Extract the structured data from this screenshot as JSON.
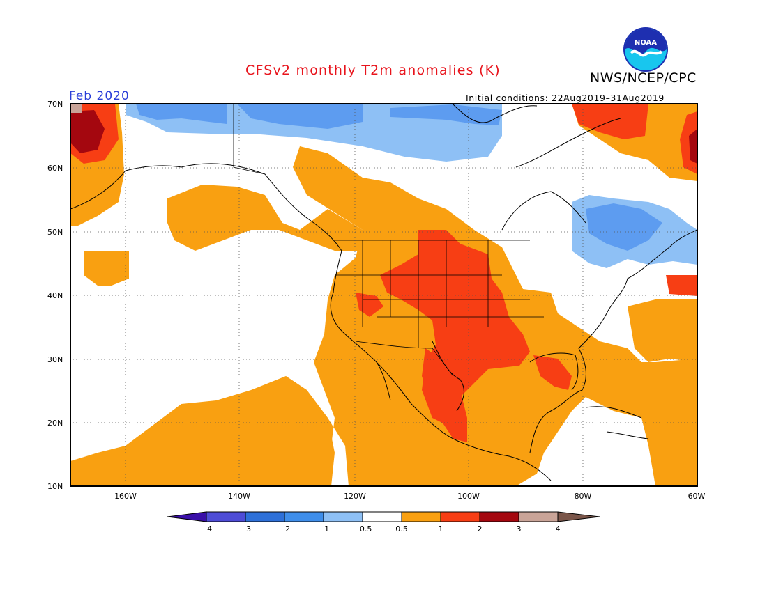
{
  "title": "CFSv2 monthly T2m anomalies (K)",
  "agency": "NWS/NCEP/CPC",
  "logo_text": "NOAA",
  "valid_month": "Feb 2020",
  "initial_conditions": "Initial conditions: 22Aug2019–31Aug2019",
  "colors": {
    "title": "#e8141c",
    "month": "#2a3ed8",
    "neg4": "#3a0fa8",
    "neg3": "#4e4cd6",
    "neg2": "#2e70d8",
    "neg1": "#5d9cf0",
    "neg05": "#8ec0f5",
    "neutral": "#ffffff",
    "pos05": "#f9a011",
    "pos1": "#f73e14",
    "pos2": "#a4070f",
    "pos3": "#c9a498",
    "pos4": "#7a5549"
  },
  "map": {
    "lat_labels": [
      "70N",
      "60N",
      "50N",
      "40N",
      "30N",
      "20N",
      "10N"
    ],
    "lon_labels": [
      "160W",
      "140W",
      "120W",
      "100W",
      "80W",
      "60W"
    ]
  },
  "colorbar": {
    "labels": [
      "−4",
      "−3",
      "−2",
      "−1",
      "−0.5",
      "0.5",
      "1",
      "2",
      "3",
      "4"
    ],
    "colors": [
      "#5b2bd0",
      "#3a5fd4",
      "#2e79e0",
      "#5ea2f2",
      "#8fc3f5",
      "#ffffff",
      "#f9a011",
      "#f73e14",
      "#a4070f",
      "#c9a498"
    ]
  }
}
